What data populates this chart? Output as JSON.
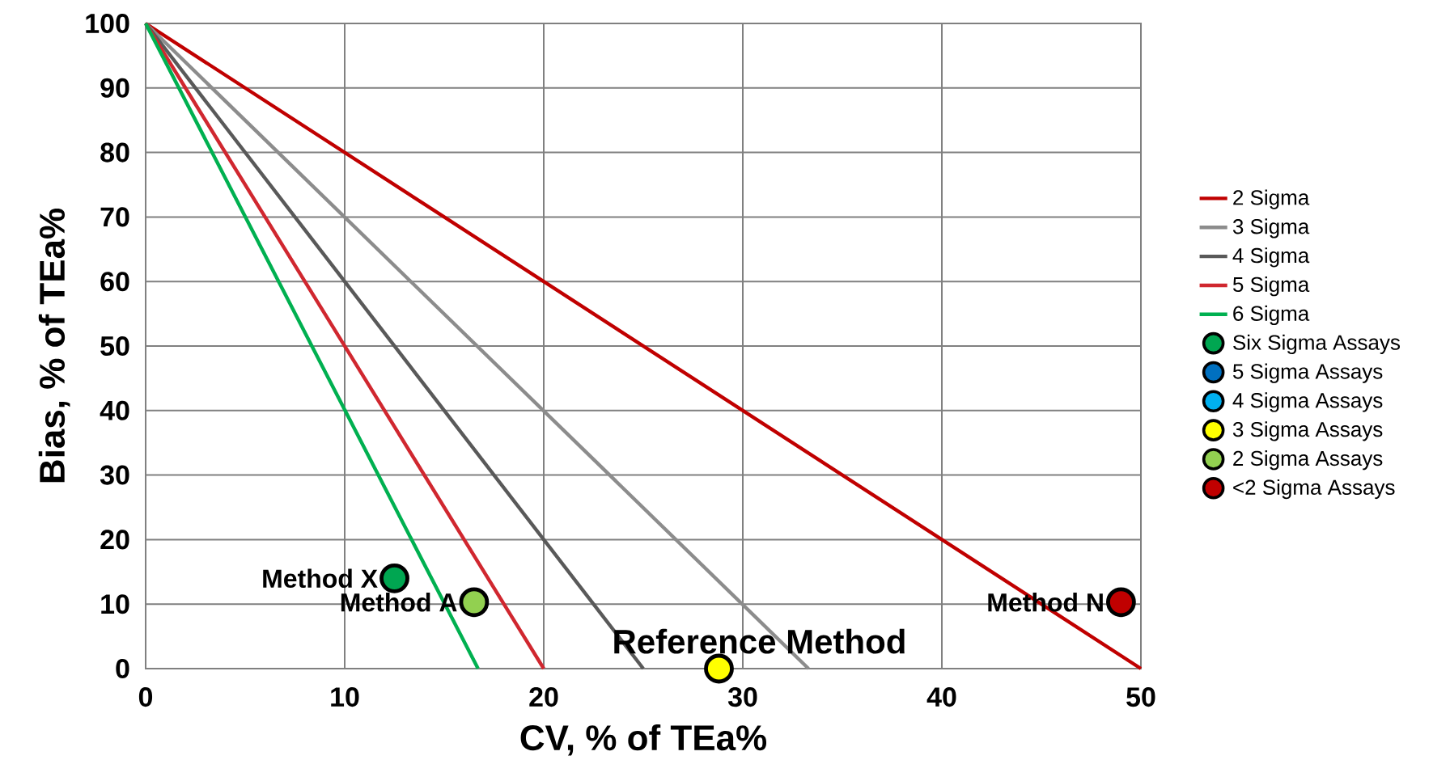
{
  "chart_data": {
    "type": "line",
    "xlabel": "CV, % of TEa%",
    "ylabel": "Bias, % of TEa%",
    "xlim": [
      0,
      50
    ],
    "ylim": [
      0,
      100
    ],
    "xticks": [
      0,
      10,
      20,
      30,
      40,
      50
    ],
    "yticks": [
      0,
      10,
      20,
      30,
      40,
      50,
      60,
      70,
      80,
      90,
      100
    ],
    "grid": true,
    "legend": "right",
    "series": [
      {
        "name": "2 Sigma",
        "color": "#c00000",
        "x": [
          0,
          50
        ],
        "values": [
          100,
          0
        ]
      },
      {
        "name": "3 Sigma",
        "color": "#8c8c8c",
        "x": [
          0,
          33.3
        ],
        "values": [
          100,
          0
        ]
      },
      {
        "name": "4 Sigma",
        "color": "#595959",
        "x": [
          0,
          25
        ],
        "values": [
          100,
          0
        ]
      },
      {
        "name": "5 Sigma",
        "color": "#d0272f",
        "x": [
          0,
          20
        ],
        "values": [
          100,
          0
        ]
      },
      {
        "name": "6 Sigma",
        "color": "#00b050",
        "x": [
          0,
          16.7
        ],
        "values": [
          100,
          0
        ]
      },
      {
        "name": "Six Sigma Assays",
        "type": "scatter",
        "marker": "circle",
        "color": "#00a651",
        "x": [
          12.5
        ],
        "values": [
          14
        ]
      },
      {
        "name": "5 Sigma Assays",
        "type": "scatter",
        "marker": "circle",
        "color": "#0070c0"
      },
      {
        "name": "4 Sigma Assays",
        "type": "scatter",
        "marker": "circle",
        "color": "#00b0f0"
      },
      {
        "name": "3 Sigma Assays",
        "type": "scatter",
        "marker": "circle",
        "color": "#ffff00",
        "x": [
          28.8
        ],
        "values": [
          0
        ]
      },
      {
        "name": "2 Sigma Assays",
        "type": "scatter",
        "marker": "circle",
        "color": "#92d050",
        "x": [
          16.5
        ],
        "values": [
          10.3
        ]
      },
      {
        "name": "<2 Sigma Assays",
        "type": "scatter",
        "marker": "circle",
        "color": "#c00000",
        "x": [
          49
        ],
        "values": [
          10.3
        ]
      }
    ],
    "annotations": [
      {
        "text": "Method X",
        "x": 12.5,
        "y": 14
      },
      {
        "text": "Method A",
        "x": 16.5,
        "y": 10.3
      },
      {
        "text": "Reference Method",
        "x": 28.8,
        "y": 0
      },
      {
        "text": "Method N",
        "x": 49,
        "y": 10.3
      }
    ]
  }
}
